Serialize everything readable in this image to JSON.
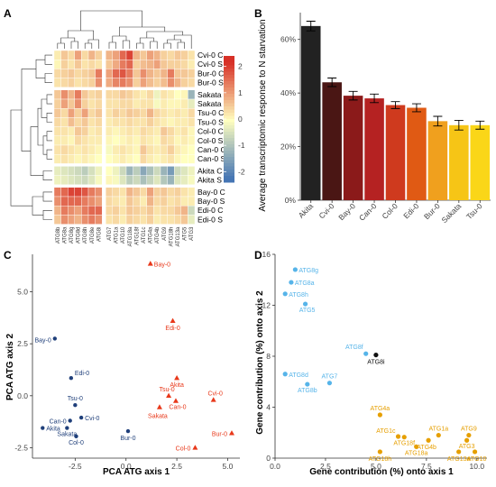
{
  "panels": {
    "a": "A",
    "b": "B",
    "c": "C",
    "d": "D"
  },
  "chart_data": [
    {
      "panel": "A",
      "type": "heatmap",
      "rows": [
        "Cvi-0 C",
        "Cvi-0 S",
        "Bur-0 C",
        "Bur-0 S",
        "Sakata C",
        "Sakata S",
        "Tsu-0 C",
        "Tsu-0 S",
        "Col-0 C",
        "Col-0 S",
        "Can-0 C",
        "Can-0 S",
        "Akita C",
        "Akita S",
        "Bay-0 C",
        "Bay-0 S",
        "Edi-0 C",
        "Edi-0 S"
      ],
      "columns": [
        "ATG8b",
        "ATG8a",
        "ATG8g",
        "ATG8d",
        "ATG8h",
        "ATG8e",
        "ATG8i",
        "ATG7",
        "ATG1a",
        "ATG10",
        "ATG18a",
        "ATG18f",
        "ATG1c",
        "ATG4a",
        "ATG4b",
        "ATG9",
        "ATG18h",
        "ATG13a",
        "ATG5",
        "ATG3"
      ],
      "row_groups": [
        4,
        8,
        2,
        4
      ],
      "col_groups": [
        7,
        13
      ],
      "values": [
        [
          0.2,
          0.6,
          0.4,
          1.0,
          0.4,
          0.8,
          0.5,
          0.8,
          1.0,
          1.6,
          2.0,
          0.8,
          0.6,
          1.0,
          0.8,
          0.5,
          0.4,
          0.6,
          0.5,
          0.3
        ],
        [
          0.1,
          0.5,
          0.3,
          0.6,
          0.3,
          0.4,
          0.3,
          0.6,
          0.9,
          1.4,
          1.6,
          0.5,
          0.7,
          0.8,
          1.0,
          0.6,
          0.5,
          0.5,
          0.4,
          0.2
        ],
        [
          0.4,
          0.5,
          0.6,
          0.4,
          0.5,
          0.6,
          1.4,
          1.0,
          1.6,
          1.8,
          1.4,
          0.6,
          1.2,
          0.8,
          0.6,
          0.8,
          1.4,
          0.6,
          0.6,
          0.5
        ],
        [
          0.3,
          0.4,
          0.5,
          0.3,
          0.4,
          0.5,
          1.2,
          0.9,
          1.3,
          1.4,
          1.2,
          0.5,
          1.0,
          0.7,
          0.5,
          0.7,
          1.2,
          0.8,
          0.5,
          0.4
        ],
        [
          0.6,
          1.2,
          0.8,
          1.4,
          0.6,
          0.4,
          0.5,
          0.4,
          0.4,
          0.6,
          0.5,
          0.3,
          0.2,
          0.4,
          -0.2,
          0.3,
          0.2,
          0.0,
          0.1,
          -1.2
        ],
        [
          0.5,
          1.0,
          0.6,
          1.2,
          0.5,
          0.3,
          0.4,
          0.3,
          0.3,
          0.4,
          0.4,
          0.2,
          0.3,
          0.3,
          -0.1,
          0.2,
          0.1,
          0.1,
          0.2,
          -0.3
        ],
        [
          0.6,
          0.4,
          1.0,
          0.5,
          1.0,
          0.4,
          0.6,
          0.3,
          0.5,
          0.4,
          0.6,
          0.5,
          0.4,
          0.8,
          0.4,
          0.3,
          0.2,
          0.3,
          0.2,
          0.4
        ],
        [
          0.4,
          0.3,
          0.7,
          0.4,
          0.6,
          0.3,
          0.4,
          0.2,
          0.3,
          0.3,
          0.4,
          0.3,
          0.3,
          0.5,
          0.3,
          0.2,
          0.1,
          0.2,
          0.2,
          0.3
        ],
        [
          0.3,
          0.3,
          0.2,
          0.6,
          0.5,
          0.2,
          0.3,
          0.2,
          0.1,
          0.2,
          0.3,
          0.2,
          0.4,
          0.3,
          0.2,
          0.6,
          0.4,
          0.2,
          0.3,
          0.1
        ],
        [
          0.2,
          0.2,
          0.1,
          0.4,
          0.3,
          0.2,
          0.2,
          0.1,
          0.0,
          0.1,
          0.2,
          0.1,
          0.3,
          0.2,
          0.1,
          0.4,
          0.3,
          0.1,
          0.2,
          0.1
        ],
        [
          0.3,
          0.4,
          0.3,
          0.2,
          0.3,
          0.2,
          0.1,
          -0.1,
          0.2,
          0.3,
          0.2,
          0.1,
          0.6,
          0.3,
          0.2,
          0.3,
          0.5,
          0.2,
          0.1,
          0.0
        ],
        [
          0.2,
          0.3,
          0.2,
          0.1,
          0.2,
          0.1,
          0.0,
          0.0,
          0.1,
          0.2,
          0.1,
          0.0,
          0.4,
          0.2,
          0.1,
          0.2,
          0.3,
          0.1,
          0.0,
          0.0
        ],
        [
          -0.3,
          -0.4,
          -0.5,
          -0.6,
          -0.8,
          -0.5,
          -0.2,
          0.0,
          -0.2,
          -0.6,
          -1.2,
          -0.8,
          -1.4,
          -1.0,
          -0.6,
          -1.2,
          -1.6,
          -0.6,
          -0.4,
          -0.2
        ],
        [
          -0.2,
          -0.3,
          -0.4,
          -0.5,
          -0.6,
          -0.4,
          -0.1,
          0.1,
          -0.1,
          -0.4,
          -0.8,
          -0.6,
          -1.0,
          -0.7,
          -0.4,
          -0.9,
          -1.2,
          -0.4,
          -0.3,
          -0.1
        ],
        [
          1.4,
          1.6,
          2.0,
          2.0,
          1.8,
          1.4,
          1.2,
          0.5,
          0.4,
          0.3,
          0.8,
          0.6,
          0.4,
          1.0,
          0.5,
          0.6,
          0.4,
          0.5,
          0.3,
          0.2
        ],
        [
          1.2,
          1.6,
          1.6,
          1.6,
          1.4,
          1.2,
          1.0,
          0.4,
          0.3,
          0.2,
          0.6,
          0.4,
          0.2,
          0.8,
          0.4,
          0.5,
          0.3,
          0.4,
          0.2,
          0.2
        ],
        [
          0.8,
          1.4,
          1.2,
          1.0,
          1.4,
          1.6,
          1.6,
          0.4,
          0.5,
          0.3,
          0.6,
          0.5,
          0.4,
          0.6,
          0.3,
          0.4,
          0.4,
          0.6,
          0.8,
          -0.6
        ],
        [
          0.6,
          1.2,
          1.0,
          0.8,
          1.2,
          1.4,
          1.2,
          0.3,
          0.4,
          0.2,
          0.5,
          0.4,
          0.3,
          0.5,
          0.2,
          0.3,
          0.3,
          0.4,
          0.6,
          -0.3
        ]
      ],
      "legend_ticks": [
        "2",
        "1",
        "0",
        "-1",
        "-2"
      ],
      "color_scale": {
        "low": "#4575b4",
        "mid": "#ffffbf",
        "high": "#d73027"
      }
    },
    {
      "panel": "B",
      "type": "bar",
      "ylabel": "Average transcriptomic response to N starvation",
      "ylim": [
        0,
        70
      ],
      "y_ticks": [
        "0%",
        "20%",
        "40%",
        "60%"
      ],
      "categories": [
        "Akita",
        "Cvi-0",
        "Bay-0",
        "Can-0",
        "Col-0",
        "Edi-0",
        "Bur-0",
        "Sakata",
        "Tsu-0"
      ],
      "values": [
        65,
        44,
        39,
        38,
        35.5,
        34.5,
        29.5,
        28,
        28
      ],
      "errors": [
        1.8,
        1.6,
        1.6,
        1.6,
        1.3,
        1.5,
        1.8,
        1.8,
        1.5
      ],
      "colors": [
        "#222222",
        "#4a1614",
        "#8b1a1a",
        "#b52222",
        "#cf3a1e",
        "#e05a14",
        "#f0a01e",
        "#f6c516",
        "#fad618"
      ]
    },
    {
      "panel": "C",
      "type": "scatter",
      "xlabel": "PCA ATG axis 1",
      "ylabel": "PCA ATG axis 2",
      "xlim": [
        -4.6,
        5.6
      ],
      "ylim": [
        -3.0,
        6.8
      ],
      "x_ticks": [
        "-2.5",
        "0.0",
        "2.5",
        "5.0"
      ],
      "y_ticks": [
        "-2.5",
        "0.0",
        "2.5",
        "5.0"
      ],
      "series": [
        {
          "marker": "circle",
          "color": "#1f3f7a",
          "points": [
            {
              "label": "Bay-0",
              "x": -3.5,
              "y": 2.75
            },
            {
              "label": "Edi-0",
              "x": -2.7,
              "y": 0.85
            },
            {
              "label": "Tsu-0",
              "x": -2.5,
              "y": -0.45
            },
            {
              "label": "Can-0",
              "x": -2.75,
              "y": -1.2
            },
            {
              "label": "Cvi-0",
              "x": -2.2,
              "y": -1.05
            },
            {
              "label": "Akita",
              "x": -4.1,
              "y": -1.55
            },
            {
              "label": "Sakata",
              "x": -2.9,
              "y": -1.55
            },
            {
              "label": "Col-0",
              "x": -2.45,
              "y": -1.95
            },
            {
              "label": "Bur-0",
              "x": 0.1,
              "y": -1.7
            }
          ]
        },
        {
          "marker": "triangle",
          "color": "#e8381a",
          "points": [
            {
              "label": "Bay-0",
              "x": 1.2,
              "y": 6.35
            },
            {
              "label": "Edi-0",
              "x": 2.3,
              "y": 3.6
            },
            {
              "label": "Akita",
              "x": 2.5,
              "y": 0.85
            },
            {
              "label": "Tsu-0",
              "x": 2.1,
              "y": 0.0
            },
            {
              "label": "Can-0",
              "x": 2.45,
              "y": -0.25
            },
            {
              "label": "Sakata",
              "x": 1.65,
              "y": -0.55
            },
            {
              "label": "Cvi-0",
              "x": 4.3,
              "y": -0.2
            },
            {
              "label": "Col-0",
              "x": 3.4,
              "y": -2.5
            },
            {
              "label": "Bur-0",
              "x": 5.2,
              "y": -1.8
            }
          ]
        }
      ]
    },
    {
      "panel": "D",
      "type": "scatter",
      "xlabel": "Gene contribution (%) onto axis 1",
      "ylabel": "Gene contribution (%) onto axis 2",
      "xlim": [
        0,
        10.5
      ],
      "ylim": [
        0,
        16
      ],
      "x_ticks": [
        "0.0",
        "2.5",
        "5.0",
        "7.5",
        "10.0"
      ],
      "y_ticks": [
        "0",
        "4",
        "8",
        "12",
        "16"
      ],
      "points": [
        {
          "label": "ATG8g",
          "x": 1.0,
          "y": 14.8,
          "color": "#56b4e9"
        },
        {
          "label": "ATG8a",
          "x": 0.8,
          "y": 13.8,
          "color": "#56b4e9"
        },
        {
          "label": "ATG8h",
          "x": 0.5,
          "y": 12.9,
          "color": "#56b4e9"
        },
        {
          "label": "ATG5",
          "x": 1.5,
          "y": 12.1,
          "color": "#56b4e9"
        },
        {
          "label": "ATG8f",
          "x": 4.5,
          "y": 8.2,
          "color": "#56b4e9"
        },
        {
          "label": "ATG8i",
          "x": 5.0,
          "y": 8.1,
          "color": "#111111"
        },
        {
          "label": "ATG8d",
          "x": 0.5,
          "y": 6.6,
          "color": "#56b4e9"
        },
        {
          "label": "ATG7",
          "x": 2.7,
          "y": 5.9,
          "color": "#56b4e9"
        },
        {
          "label": "ATG8b",
          "x": 1.6,
          "y": 5.8,
          "color": "#56b4e9"
        },
        {
          "label": "ATG4a",
          "x": 5.2,
          "y": 3.4,
          "color": "#e69f00"
        },
        {
          "label": "ATG1c",
          "x": 6.1,
          "y": 1.7,
          "color": "#e69f00"
        },
        {
          "label": "ATG18f",
          "x": 6.4,
          "y": 1.65,
          "color": "#e69f00"
        },
        {
          "label": "ATG1a",
          "x": 8.1,
          "y": 1.8,
          "color": "#e69f00"
        },
        {
          "label": "ATG4b",
          "x": 7.6,
          "y": 1.4,
          "color": "#e69f00"
        },
        {
          "label": "ATG9",
          "x": 9.6,
          "y": 1.8,
          "color": "#e69f00"
        },
        {
          "label": "ATG3",
          "x": 9.5,
          "y": 1.4,
          "color": "#e69f00"
        },
        {
          "label": "ATG18a",
          "x": 7.0,
          "y": 0.9,
          "color": "#e69f00"
        },
        {
          "label": "ATG18h",
          "x": 5.2,
          "y": 0.5,
          "color": "#e69f00"
        },
        {
          "label": "ATG13a",
          "x": 9.1,
          "y": 0.5,
          "color": "#e69f00"
        },
        {
          "label": "ATG10",
          "x": 9.9,
          "y": 0.5,
          "color": "#e69f00"
        }
      ]
    }
  ]
}
